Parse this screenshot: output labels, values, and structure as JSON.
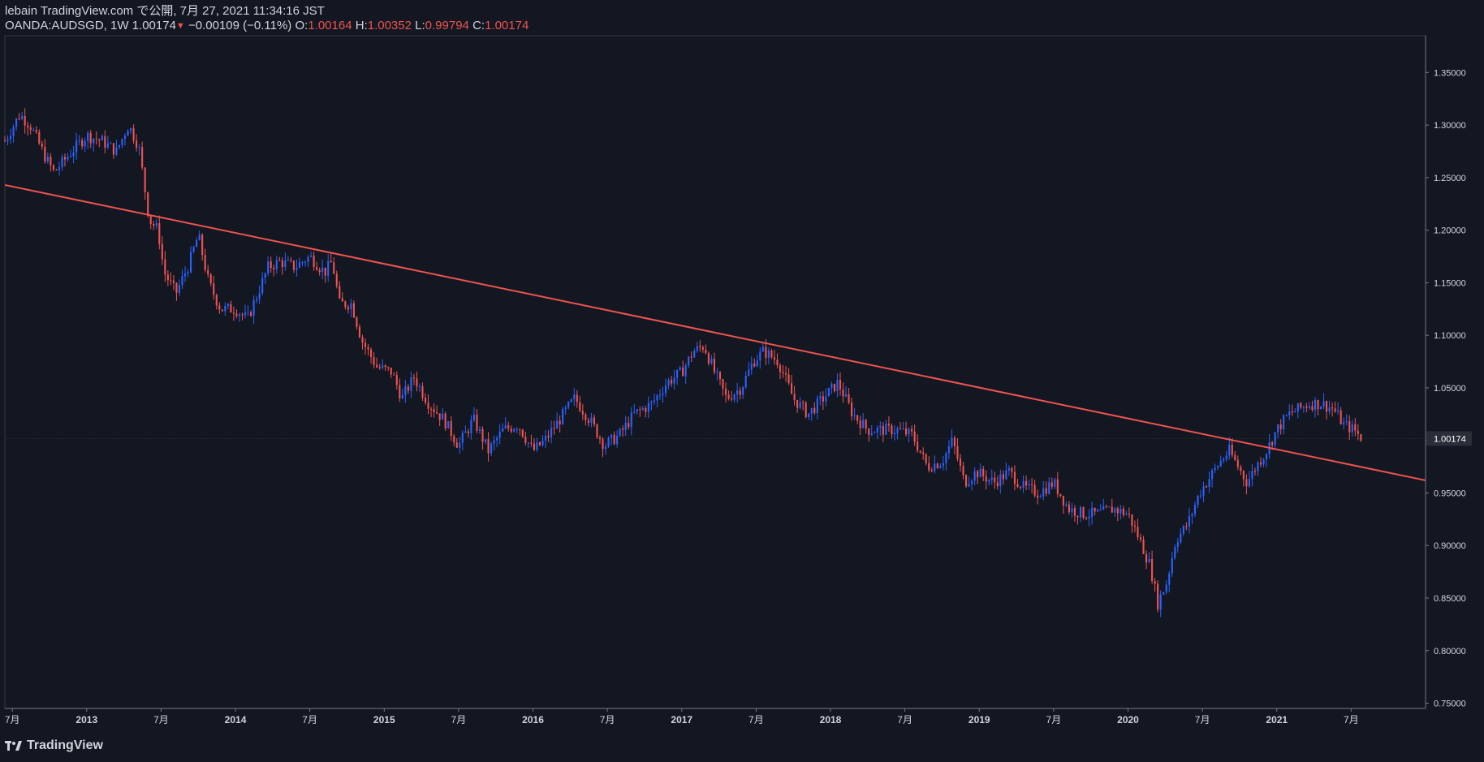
{
  "header": {
    "publish_line": "lebain TradingView.com で公開, 7月 27, 2021 11:34:16 JST",
    "symbol": "OANDA:AUDSGD, 1W 1.00174",
    "change": "−0.00109 (−0.11%)",
    "o_label": "O:",
    "o_value": "1.00164",
    "h_label": "H:",
    "h_value": "1.00352",
    "l_label": "L:",
    "l_value": "0.99794",
    "c_label": "C:",
    "c_value": "1.00174"
  },
  "footer": {
    "brand": "TradingView"
  },
  "colors": {
    "background": "#131722",
    "up": "#2962ff",
    "down": "#ef5350",
    "trendline": "#ef5350",
    "axis_text": "#d1d4dc"
  },
  "chart_data": {
    "type": "candlestick",
    "symbol": "OANDA:AUDSGD",
    "interval": "1W",
    "last_price": 1.00174,
    "ylim": [
      0.745,
      1.385
    ],
    "y_ticks": [
      1.35,
      1.3,
      1.25,
      1.2,
      1.15,
      1.1,
      1.05,
      1.0,
      0.95,
      0.9,
      0.85,
      0.8,
      0.75
    ],
    "y_tick_labels": [
      "1.35000",
      "1.30000",
      "1.25000",
      "1.20000",
      "1.15000",
      "1.10000",
      "1.05000",
      "1.00000",
      "0.95000",
      "0.90000",
      "0.85000",
      "0.80000",
      "0.75000"
    ],
    "x_range": [
      2012.45,
      2022.0
    ],
    "x_ticks": [
      {
        "t": 2012.5,
        "label": "7月"
      },
      {
        "t": 2013.0,
        "label": "2013"
      },
      {
        "t": 2013.5,
        "label": "7月"
      },
      {
        "t": 2014.0,
        "label": "2014"
      },
      {
        "t": 2014.5,
        "label": "7月"
      },
      {
        "t": 2015.0,
        "label": "2015"
      },
      {
        "t": 2015.5,
        "label": "7月"
      },
      {
        "t": 2016.0,
        "label": "2016"
      },
      {
        "t": 2016.5,
        "label": "7月"
      },
      {
        "t": 2017.0,
        "label": "2017"
      },
      {
        "t": 2017.5,
        "label": "7月"
      },
      {
        "t": 2018.0,
        "label": "2018"
      },
      {
        "t": 2018.5,
        "label": "7月"
      },
      {
        "t": 2019.0,
        "label": "2019"
      },
      {
        "t": 2019.5,
        "label": "7月"
      },
      {
        "t": 2020.0,
        "label": "2020"
      },
      {
        "t": 2020.5,
        "label": "7月"
      },
      {
        "t": 2021.0,
        "label": "2021"
      },
      {
        "t": 2021.5,
        "label": "7月"
      }
    ],
    "close_path": [
      [
        2012.45,
        1.285
      ],
      [
        2012.55,
        1.31
      ],
      [
        2012.62,
        1.3
      ],
      [
        2012.72,
        1.27
      ],
      [
        2012.78,
        1.255
      ],
      [
        2012.9,
        1.275
      ],
      [
        2013.0,
        1.29
      ],
      [
        2013.1,
        1.285
      ],
      [
        2013.2,
        1.275
      ],
      [
        2013.28,
        1.3
      ],
      [
        2013.35,
        1.28
      ],
      [
        2013.42,
        1.21
      ],
      [
        2013.48,
        1.2
      ],
      [
        2013.52,
        1.16
      ],
      [
        2013.6,
        1.14
      ],
      [
        2013.68,
        1.165
      ],
      [
        2013.75,
        1.195
      ],
      [
        2013.82,
        1.15
      ],
      [
        2013.9,
        1.125
      ],
      [
        2014.0,
        1.125
      ],
      [
        2014.08,
        1.115
      ],
      [
        2014.15,
        1.14
      ],
      [
        2014.22,
        1.165
      ],
      [
        2014.3,
        1.17
      ],
      [
        2014.4,
        1.165
      ],
      [
        2014.5,
        1.175
      ],
      [
        2014.6,
        1.16
      ],
      [
        2014.65,
        1.17
      ],
      [
        2014.7,
        1.13
      ],
      [
        2014.78,
        1.13
      ],
      [
        2014.85,
        1.095
      ],
      [
        2014.95,
        1.07
      ],
      [
        2015.05,
        1.065
      ],
      [
        2015.12,
        1.04
      ],
      [
        2015.2,
        1.06
      ],
      [
        2015.3,
        1.035
      ],
      [
        2015.4,
        1.02
      ],
      [
        2015.5,
        0.995
      ],
      [
        2015.6,
        1.02
      ],
      [
        2015.7,
        0.99
      ],
      [
        2015.8,
        1.01
      ],
      [
        2015.9,
        1.015
      ],
      [
        2016.0,
        0.99
      ],
      [
        2016.08,
        1.0
      ],
      [
        2016.18,
        1.02
      ],
      [
        2016.28,
        1.04
      ],
      [
        2016.38,
        1.02
      ],
      [
        2016.48,
        0.995
      ],
      [
        2016.58,
        1.005
      ],
      [
        2016.68,
        1.025
      ],
      [
        2016.8,
        1.035
      ],
      [
        2016.9,
        1.055
      ],
      [
        2017.0,
        1.065
      ],
      [
        2017.08,
        1.085
      ],
      [
        2017.15,
        1.09
      ],
      [
        2017.22,
        1.065
      ],
      [
        2017.3,
        1.04
      ],
      [
        2017.4,
        1.05
      ],
      [
        2017.48,
        1.075
      ],
      [
        2017.55,
        1.085
      ],
      [
        2017.65,
        1.075
      ],
      [
        2017.75,
        1.04
      ],
      [
        2017.85,
        1.025
      ],
      [
        2017.95,
        1.04
      ],
      [
        2018.05,
        1.055
      ],
      [
        2018.15,
        1.025
      ],
      [
        2018.25,
        1.01
      ],
      [
        2018.35,
        1.01
      ],
      [
        2018.45,
        1.01
      ],
      [
        2018.55,
        1.005
      ],
      [
        2018.65,
        0.975
      ],
      [
        2018.75,
        0.98
      ],
      [
        2018.82,
        1.0
      ],
      [
        2018.9,
        0.96
      ],
      [
        2018.98,
        0.97
      ],
      [
        2019.1,
        0.96
      ],
      [
        2019.2,
        0.97
      ],
      [
        2019.3,
        0.955
      ],
      [
        2019.4,
        0.95
      ],
      [
        2019.5,
        0.96
      ],
      [
        2019.6,
        0.935
      ],
      [
        2019.7,
        0.93
      ],
      [
        2019.8,
        0.93
      ],
      [
        2019.9,
        0.935
      ],
      [
        2020.0,
        0.93
      ],
      [
        2020.08,
        0.905
      ],
      [
        2020.15,
        0.88
      ],
      [
        2020.2,
        0.845
      ],
      [
        2020.26,
        0.865
      ],
      [
        2020.32,
        0.905
      ],
      [
        2020.4,
        0.92
      ],
      [
        2020.48,
        0.95
      ],
      [
        2020.55,
        0.965
      ],
      [
        2020.62,
        0.98
      ],
      [
        2020.68,
        0.99
      ],
      [
        2020.74,
        0.975
      ],
      [
        2020.8,
        0.96
      ],
      [
        2020.86,
        0.975
      ],
      [
        2020.93,
        0.99
      ],
      [
        2021.0,
        1.01
      ],
      [
        2021.08,
        1.025
      ],
      [
        2021.15,
        1.03
      ],
      [
        2021.22,
        1.035
      ],
      [
        2021.3,
        1.035
      ],
      [
        2021.38,
        1.03
      ],
      [
        2021.45,
        1.015
      ],
      [
        2021.52,
        1.01
      ],
      [
        2021.57,
        1.00174
      ]
    ],
    "trendline": {
      "points": [
        [
          2012.45,
          1.243
        ],
        [
          2022.0,
          0.962
        ]
      ]
    }
  }
}
